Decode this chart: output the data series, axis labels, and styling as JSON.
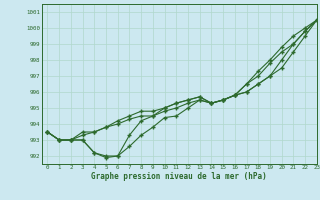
{
  "xlabel": "Graphe pression niveau de la mer (hPa)",
  "xlim": [
    -0.5,
    23
  ],
  "ylim": [
    991.5,
    1001.5
  ],
  "yticks": [
    992,
    993,
    994,
    995,
    996,
    997,
    998,
    999,
    1000,
    1001
  ],
  "xticks": [
    0,
    1,
    2,
    3,
    4,
    5,
    6,
    7,
    8,
    9,
    10,
    11,
    12,
    13,
    14,
    15,
    16,
    17,
    18,
    19,
    20,
    21,
    22,
    23
  ],
  "bg_color": "#cce8f0",
  "grid_color": "#b0d8cc",
  "line_color": "#2d6a2d",
  "series": [
    [
      993.5,
      993.0,
      993.0,
      993.0,
      992.2,
      992.0,
      992.0,
      992.6,
      993.3,
      993.8,
      994.4,
      994.5,
      995.0,
      995.5,
      995.3,
      995.5,
      995.8,
      996.5,
      997.0,
      997.8,
      998.5,
      999.0,
      999.8,
      1000.5
    ],
    [
      993.5,
      993.0,
      993.0,
      993.3,
      993.5,
      993.8,
      994.0,
      994.3,
      994.5,
      994.5,
      994.8,
      995.0,
      995.3,
      995.5,
      995.3,
      995.5,
      995.8,
      996.0,
      996.5,
      997.0,
      998.0,
      999.0,
      999.8,
      1000.5
    ],
    [
      993.5,
      993.0,
      993.0,
      993.0,
      992.2,
      991.9,
      992.0,
      993.3,
      994.2,
      994.5,
      995.0,
      995.3,
      995.5,
      995.7,
      995.3,
      995.5,
      995.8,
      996.5,
      997.3,
      998.0,
      998.8,
      999.5,
      1000.0,
      1000.5
    ],
    [
      993.5,
      993.0,
      993.0,
      993.5,
      993.5,
      993.8,
      994.2,
      994.5,
      994.8,
      994.8,
      995.0,
      995.3,
      995.5,
      995.7,
      995.3,
      995.5,
      995.8,
      996.0,
      996.5,
      997.0,
      997.5,
      998.5,
      999.5,
      1000.5
    ]
  ]
}
